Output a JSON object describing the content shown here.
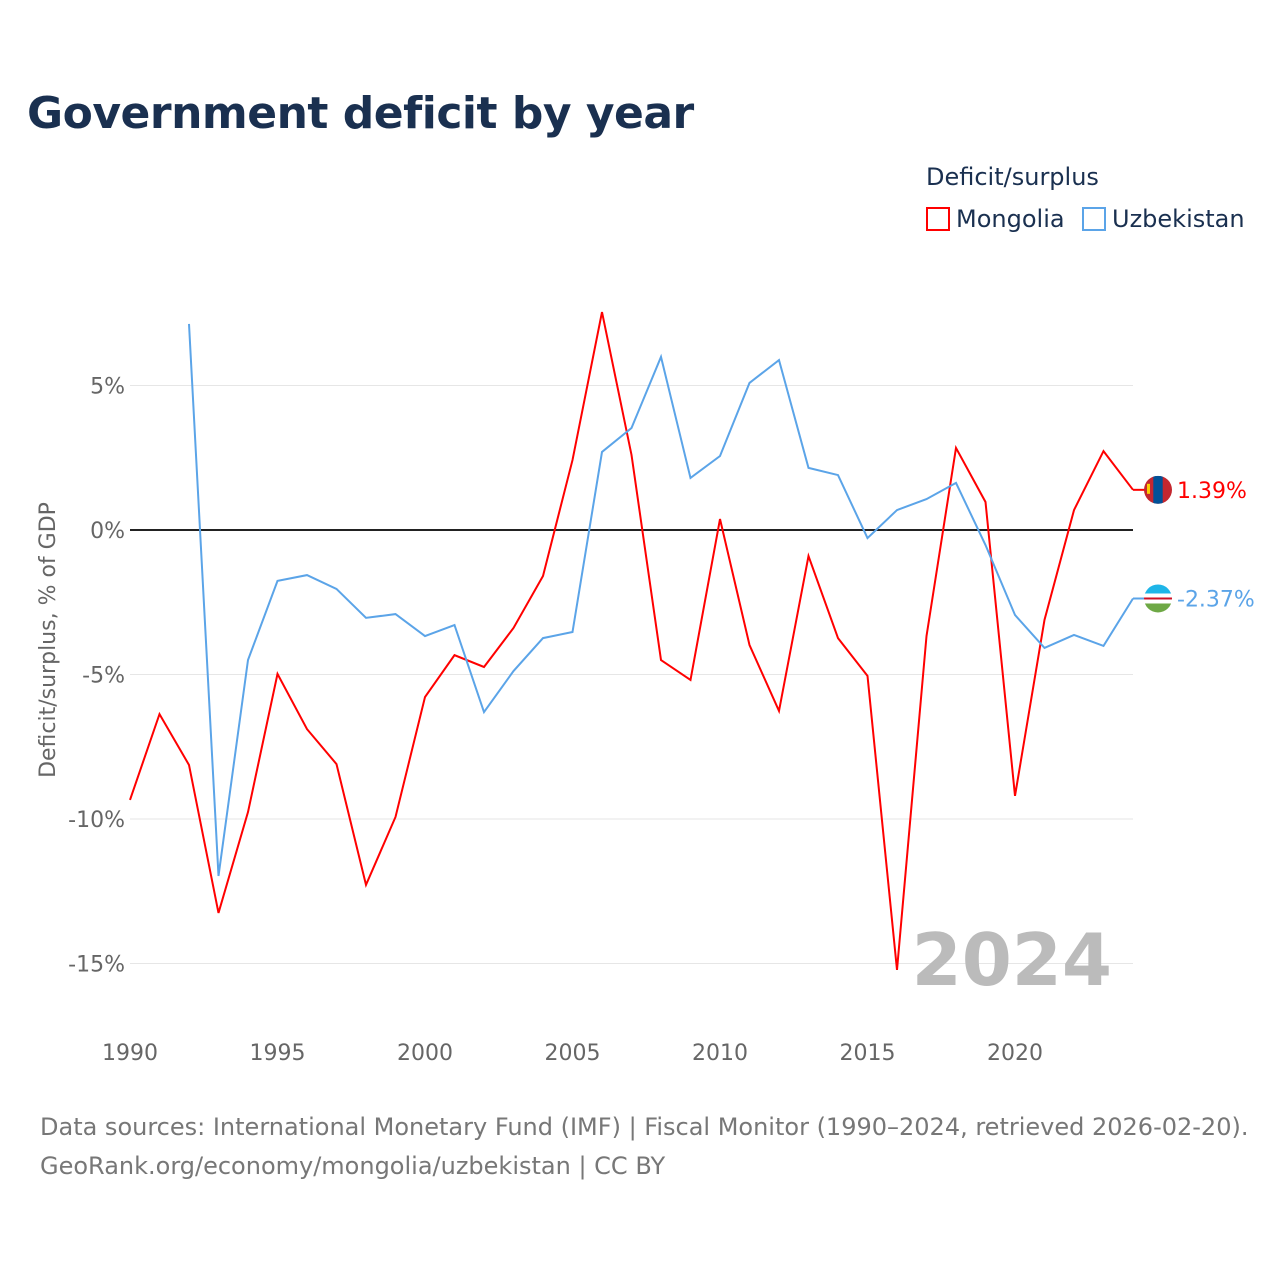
{
  "title": "Government deficit by year",
  "legend": {
    "title": "Deficit/surplus",
    "items": [
      "Mongolia",
      "Uzbekistan"
    ]
  },
  "source_line1": "Data sources: International Monetary Fund (IMF) | Fiscal Monitor (1990–2024, retrieved 2026-02-20).",
  "source_line2": "GeoRank.org/economy/mongolia/uzbekistan | CC BY",
  "chart_data": {
    "type": "line",
    "title": "Government deficit by year",
    "xlabel": "",
    "ylabel": "Deficit/surplus, % of GDP",
    "xlim": [
      1990,
      2024
    ],
    "ylim": [
      -16,
      8
    ],
    "xticks": [
      1990,
      1995,
      2000,
      2005,
      2010,
      2015,
      2020
    ],
    "yticks": [
      {
        "v": 5,
        "label": "5%"
      },
      {
        "v": 0,
        "label": "0%"
      },
      {
        "v": -5,
        "label": "-5%"
      },
      {
        "v": -10,
        "label": "-10%"
      },
      {
        "v": -15,
        "label": "-15%"
      }
    ],
    "year_watermark": "2024",
    "series": [
      {
        "name": "Mongolia",
        "color": "#ff0000",
        "end_label": "1.39%",
        "x": [
          1990,
          1991,
          1992,
          1993,
          1994,
          1995,
          1996,
          1997,
          1998,
          1999,
          2000,
          2001,
          2002,
          2003,
          2004,
          2005,
          2006,
          2007,
          2008,
          2009,
          2010,
          2011,
          2012,
          2013,
          2014,
          2015,
          2016,
          2017,
          2018,
          2019,
          2020,
          2021,
          2022,
          2023,
          2024
        ],
        "values": [
          -9.34,
          -6.37,
          -8.13,
          -13.25,
          -9.76,
          -4.98,
          -6.89,
          -8.1,
          -12.28,
          -9.93,
          -5.78,
          -4.33,
          -4.74,
          -3.39,
          -1.59,
          2.42,
          7.54,
          2.6,
          -4.5,
          -5.19,
          0.38,
          -3.98,
          -6.26,
          -0.9,
          -3.74,
          -5.05,
          -15.22,
          -3.67,
          2.84,
          0.97,
          -9.2,
          -3.11,
          0.69,
          2.73,
          1.39
        ]
      },
      {
        "name": "Uzbekistan",
        "color": "#5ba4e8",
        "end_label": "-2.37%",
        "x": [
          1992,
          1993,
          1994,
          1995,
          1996,
          1997,
          1998,
          1999,
          2000,
          2001,
          2002,
          2003,
          2004,
          2005,
          2006,
          2007,
          2008,
          2009,
          2010,
          2011,
          2012,
          2013,
          2014,
          2015,
          2016,
          2017,
          2018,
          2019,
          2020,
          2021,
          2022,
          2023,
          2024
        ],
        "values": [
          7.13,
          -11.97,
          -4.5,
          -1.76,
          -1.56,
          -2.04,
          -3.04,
          -2.91,
          -3.67,
          -3.29,
          -6.3,
          -4.88,
          -3.74,
          -3.53,
          2.7,
          3.53,
          5.99,
          1.8,
          2.56,
          5.09,
          5.88,
          2.15,
          1.9,
          -0.28,
          0.69,
          1.07,
          1.63,
          -0.52,
          -2.94,
          -4.08,
          -3.63,
          -4.01,
          -2.37
        ]
      }
    ]
  }
}
